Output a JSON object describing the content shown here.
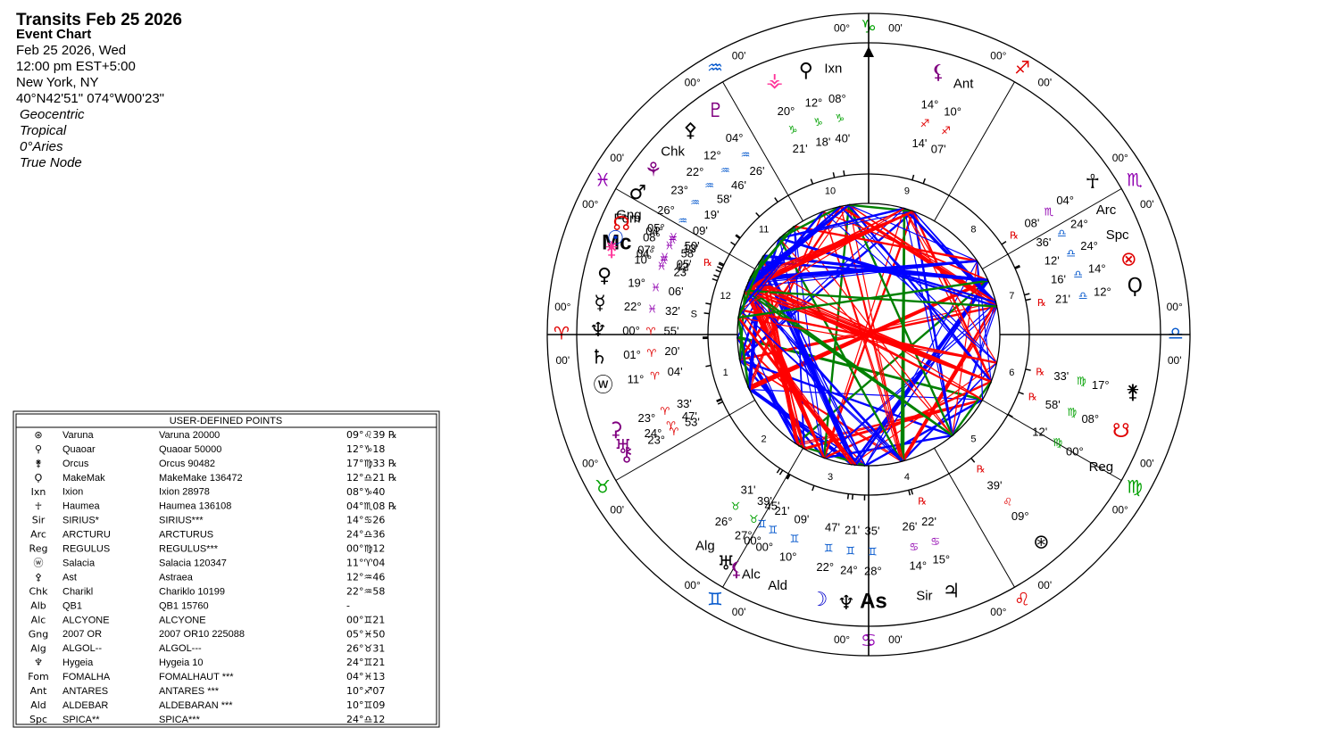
{
  "header": {
    "title": "Transits Feb 25 2026",
    "subtitle": "Event Chart",
    "lines": [
      "Feb 25 2026, Wed",
      "12:00 pm  EST+5:00",
      "New York, NY",
      "40°N42'51\" 074°W00'23\""
    ],
    "settings": [
      "Geocentric",
      "Tropical",
      "0°Aries",
      "True Node"
    ]
  },
  "table": {
    "title": "USER-DEFINED POINTS",
    "rows": [
      [
        "⊛",
        "Varuna",
        "Varuna 20000",
        "09°♌39 ℞"
      ],
      [
        "⚲",
        "Quaoar",
        "Quaoar 50000",
        "12°♑18"
      ],
      [
        "⚵",
        "Orcus",
        "Orcus 90482",
        "17°♍33 ℞"
      ],
      [
        "Ϙ",
        "MakeMak",
        "MakeMake 136472",
        "12°♎21 ℞"
      ],
      [
        "Ixn",
        "Ixion",
        "Ixion 28978",
        "08°♑40"
      ],
      [
        "☥",
        "Haumea",
        "Haumea 136108",
        "04°♏08 ℞"
      ],
      [
        "Sir",
        "SIRIUS*",
        "SIRIUS***",
        "14°♋26"
      ],
      [
        "Arc",
        "ARCTURU",
        "ARCTURUS",
        "24°♎36"
      ],
      [
        "Reg",
        "REGULUS",
        "REGULUS***",
        "00°♍12"
      ],
      [
        "ⓦ",
        "Salacia",
        "Salacia 120347",
        "11°♈04"
      ],
      [
        "⚴",
        "Ast",
        "Astraea",
        "12°♒46"
      ],
      [
        "Chk",
        "Charikl",
        "Chariklo 10199",
        "22°♒58"
      ],
      [
        "Alb",
        "QB1",
        "QB1 15760",
        "-"
      ],
      [
        "Alc",
        "ALCYONE",
        "ALCYONE",
        "00°♊21"
      ],
      [
        "Gng",
        "2007 OR",
        "2007 OR10 225088",
        "05°♓50"
      ],
      [
        "Alg",
        "ALGOL--",
        "ALGOL---",
        "26°♉31"
      ],
      [
        "♆",
        "Hygeia",
        "Hygeia 10",
        "24°♊21"
      ],
      [
        "Fom",
        "FOMALHA",
        "FOMALHAUT ***",
        "04°♓13"
      ],
      [
        "Ant",
        "ANTARES",
        "ANTARES ***",
        "10°♐07"
      ],
      [
        "Ald",
        "ALDEBAR",
        "ALDEBARAN ***",
        "10°♊09"
      ],
      [
        "Spc",
        "SPICA**",
        "SPICA***",
        "24°♎12"
      ]
    ],
    "colors": [
      "#e00000",
      "#00a000",
      "#00a000",
      "#0055cc",
      "#00a000",
      "#9000b0",
      "#9000b0",
      "#0055cc",
      "#00a000",
      "#e00000",
      "#0055cc",
      "#0055cc",
      "#000000",
      "#0055cc",
      "#9000b0",
      "#00a000",
      "#0055cc",
      "#9000b0",
      "#e00000",
      "#0055cc",
      "#0055cc"
    ]
  },
  "wheel": {
    "signs": [
      {
        "glyph": "♈",
        "color": "#e00000"
      },
      {
        "glyph": "♉",
        "color": "#00a000"
      },
      {
        "glyph": "♊",
        "color": "#0055cc"
      },
      {
        "glyph": "♋",
        "color": "#9000b0"
      },
      {
        "glyph": "♌",
        "color": "#e00000"
      },
      {
        "glyph": "♍",
        "color": "#00a000"
      },
      {
        "glyph": "♎",
        "color": "#0055cc"
      },
      {
        "glyph": "♏",
        "color": "#9000b0"
      },
      {
        "glyph": "♐",
        "color": "#e00000"
      },
      {
        "glyph": "♑",
        "color": "#00a000"
      },
      {
        "glyph": "♒",
        "color": "#0055cc"
      },
      {
        "glyph": "♓",
        "color": "#9000b0"
      }
    ],
    "cusp_degree": "00°",
    "cusp_minute": "00'",
    "houses": [
      "1",
      "2",
      "3",
      "4",
      "5",
      "6",
      "7",
      "8",
      "9",
      "10",
      "11",
      "12"
    ],
    "points": [
      {
        "symbol": "♆",
        "deg": "00°",
        "sign": "♈",
        "min": "55'",
        "color": "#000000"
      },
      {
        "symbol": "♄",
        "deg": "01°",
        "sign": "♈",
        "min": "20'",
        "color": "#000000"
      },
      {
        "symbol": "ⓦ",
        "deg": "11°",
        "sign": "♈",
        "min": "04'",
        "color": "#000000"
      },
      {
        "symbol": "⚳",
        "deg": "23°",
        "sign": "♈",
        "min": "33'",
        "color": "#800080"
      },
      {
        "symbol": "⚷",
        "deg": "23°",
        "sign": "♈",
        "min": "53'",
        "color": "#800080"
      },
      {
        "symbol": "♅",
        "deg": "24°",
        "sign": "♈",
        "min": "47'",
        "color": "#800080"
      },
      {
        "symbol": "Alg",
        "deg": "26°",
        "sign": "♉",
        "min": "31'",
        "color": "#000000"
      },
      {
        "symbol": "♅",
        "deg": "27°",
        "sign": "♉",
        "min": "39'",
        "color": "#000000"
      },
      {
        "symbol": "Alc",
        "deg": "00°",
        "sign": "♊",
        "min": "21'",
        "color": "#000000"
      },
      {
        "symbol": "⚸",
        "deg": "00°",
        "sign": "♊",
        "min": "45'",
        "color": "#800080"
      },
      {
        "symbol": "Ald",
        "deg": "10°",
        "sign": "♊",
        "min": "09'",
        "color": "#000000"
      },
      {
        "symbol": "☽",
        "deg": "22°",
        "sign": "♊",
        "min": "47'",
        "color": "#0000cc"
      },
      {
        "symbol": "♆",
        "deg": "24°",
        "sign": "♊",
        "min": "21'",
        "color": "#000000"
      },
      {
        "symbol": "As",
        "deg": "28°",
        "sign": "♊",
        "min": "35'",
        "color": "#000000"
      },
      {
        "symbol": "Sir",
        "deg": "14°",
        "sign": "♋",
        "min": "26'",
        "color": "#000000"
      },
      {
        "symbol": "♃",
        "deg": "15°",
        "sign": "♋",
        "min": "22'",
        "retro": "℞",
        "color": "#000000"
      },
      {
        "symbol": "⊛",
        "deg": "09°",
        "sign": "♌",
        "min": "39'",
        "retro": "℞",
        "color": "#000000"
      },
      {
        "symbol": "Reg",
        "deg": "00°",
        "sign": "♍",
        "min": "12'",
        "color": "#000000"
      },
      {
        "symbol": "☋",
        "deg": "08°",
        "sign": "♍",
        "min": "58'",
        "retro": "℞",
        "color": "#e00000"
      },
      {
        "symbol": "⚵",
        "deg": "17°",
        "sign": "♍",
        "min": "33'",
        "retro": "℞",
        "color": "#000000"
      },
      {
        "symbol": "Ϙ",
        "deg": "12°",
        "sign": "♎",
        "min": "21'",
        "retro": "℞",
        "color": "#000000"
      },
      {
        "symbol": "⊗",
        "deg": "14°",
        "sign": "♎",
        "min": "16'",
        "color": "#e00000"
      },
      {
        "symbol": "Spc",
        "deg": "24°",
        "sign": "♎",
        "min": "12'",
        "color": "#000000"
      },
      {
        "symbol": "Arc",
        "deg": "24°",
        "sign": "♎",
        "min": "36'",
        "color": "#000000"
      },
      {
        "symbol": "☥",
        "deg": "04°",
        "sign": "♏",
        "min": "08'",
        "retro": "℞",
        "color": "#000000"
      },
      {
        "symbol": "Ant",
        "deg": "10°",
        "sign": "♐",
        "min": "07'",
        "color": "#000000"
      },
      {
        "symbol": "⚸",
        "deg": "14°",
        "sign": "♐",
        "min": "14'",
        "color": "#800080"
      },
      {
        "symbol": "Ixn",
        "deg": "08°",
        "sign": "♑",
        "min": "40'",
        "color": "#000000"
      },
      {
        "symbol": "⚲",
        "deg": "12°",
        "sign": "♑",
        "min": "18'",
        "color": "#000000"
      },
      {
        "symbol": "⚶",
        "deg": "20°",
        "sign": "♑",
        "min": "21'",
        "color": "#ff3399"
      },
      {
        "symbol": "♇",
        "deg": "04°",
        "sign": "♒",
        "min": "26'",
        "color": "#800080"
      },
      {
        "symbol": "⚴",
        "deg": "12°",
        "sign": "♒",
        "min": "46'",
        "color": "#000000"
      },
      {
        "symbol": "Chk",
        "deg": "22°",
        "sign": "♒",
        "min": "58'",
        "color": "#000000"
      },
      {
        "symbol": "⚘",
        "deg": "23°",
        "sign": "♒",
        "min": "19'",
        "color": "#800080"
      },
      {
        "symbol": "♂",
        "deg": "26°",
        "sign": "♒",
        "min": "09'",
        "color": "#000000"
      },
      {
        "symbol": "Fom",
        "deg": "04°",
        "sign": "♓",
        "min": "13'",
        "color": "#000000"
      },
      {
        "symbol": "Mc",
        "deg": "04°",
        "sign": "♓",
        "min": "42'",
        "color": "#000000"
      },
      {
        "symbol": "Gng",
        "deg": "05°",
        "sign": "♓",
        "min": "50'",
        "color": "#000000"
      },
      {
        "symbol": "☉",
        "deg": "07°",
        "sign": "♓",
        "min": "05'",
        "color": "#0033cc"
      },
      {
        "symbol": "☊",
        "deg": "08°",
        "sign": "♓",
        "min": "58'",
        "retro": "℞",
        "color": "#e00000"
      },
      {
        "symbol": "⚵",
        "deg": "10°",
        "sign": "♓",
        "min": "23'",
        "color": "#ff3399"
      },
      {
        "symbol": "♀",
        "deg": "19°",
        "sign": "♓",
        "min": "06'",
        "color": "#000000"
      },
      {
        "symbol": "☿",
        "deg": "22°",
        "sign": "♓",
        "min": "32'",
        "retro": "S",
        "color": "#000000"
      }
    ]
  }
}
